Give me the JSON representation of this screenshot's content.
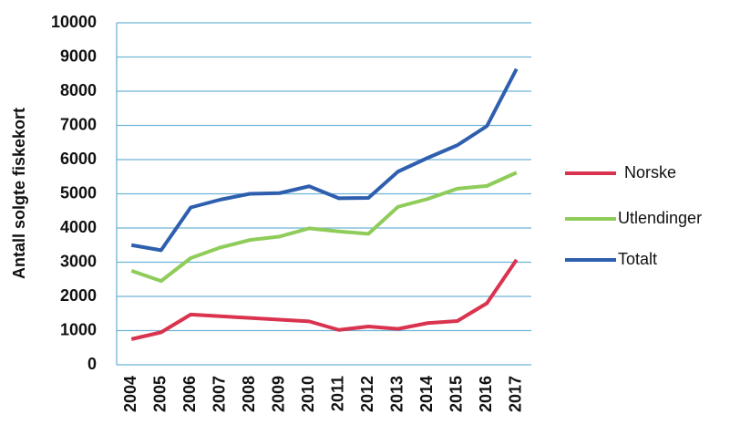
{
  "chart_data": {
    "type": "line",
    "y_label": "Antall solgte fiskekort",
    "categories": [
      "2004",
      "2005",
      "2006",
      "2007",
      "2008",
      "2009",
      "2010",
      "2011",
      "2012",
      "2013",
      "2014",
      "2015",
      "2016",
      "2017"
    ],
    "series": [
      {
        "name": "Norske",
        "color": "#d9334f",
        "values": [
          750,
          950,
          1470,
          1420,
          1370,
          1320,
          1270,
          1020,
          1120,
          1050,
          1220,
          1280,
          1800,
          3070
        ]
      },
      {
        "name": "Utlendinger",
        "color": "#8fcc5a",
        "values": [
          2750,
          2450,
          3120,
          3430,
          3650,
          3750,
          3990,
          3900,
          3830,
          4620,
          4850,
          5150,
          5230,
          5620
        ]
      },
      {
        "name": "Totalt",
        "color": "#2e5fae",
        "values": [
          3500,
          3350,
          4600,
          4830,
          5000,
          5020,
          5220,
          4870,
          4880,
          5650,
          6050,
          6420,
          6980,
          8650
        ]
      }
    ],
    "ylim": [
      0,
      10000
    ],
    "yticks": [
      0,
      1000,
      2000,
      3000,
      4000,
      5000,
      6000,
      7000,
      8000,
      9000,
      10000
    ],
    "grid": true,
    "legend": "right"
  }
}
